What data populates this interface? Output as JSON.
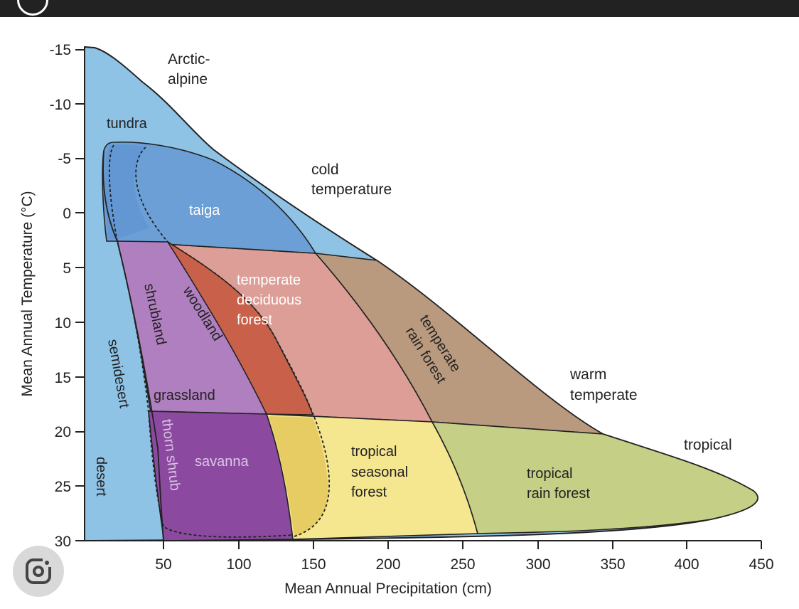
{
  "axes": {
    "y_label": "Mean Annual Temperature (°C)",
    "x_label": "Mean Annual Precipitation (cm)",
    "y_ticks": [
      "-15",
      "-10",
      "-5",
      "0",
      "5",
      "10",
      "15",
      "20",
      "25",
      "30"
    ],
    "x_ticks": [
      "50",
      "100",
      "150",
      "200",
      "250",
      "300",
      "350",
      "400",
      "450"
    ]
  },
  "zones": {
    "arctic_alpine": [
      "Arctic-",
      "alpine"
    ],
    "cold_temperate": [
      "cold",
      "temperature"
    ],
    "warm_temperate": [
      "warm",
      "temperate"
    ],
    "tropical": "tropical"
  },
  "biomes": {
    "tundra": "tundra",
    "taiga": "taiga",
    "temperate_deciduous_forest": [
      "temperate",
      "deciduous",
      "forest"
    ],
    "temperate_rain_forest": [
      "temperate",
      "rain forest"
    ],
    "shrubland": "shrubland",
    "woodland": "woodland",
    "semidesert": "semidesert",
    "grassland": "grassland",
    "desert": "desert",
    "thorn_shrub": "thorn shrub",
    "savanna": "savanna",
    "tropical_seasonal_forest": [
      "tropical",
      "seasonal",
      "forest"
    ],
    "tropical_rain_forest": [
      "tropical",
      "rain forest"
    ]
  },
  "colors": {
    "desert": "#8ec3e6",
    "tundra_taiga": "#6b9fd6",
    "temperate_deciduous": "#dc9e96",
    "woodland": "#c8604a",
    "shrubland": "#b07fbf",
    "savanna": "#8b4aa0",
    "temperate_rain": "#b99a7f",
    "tropical_seasonal": "#f5e690",
    "tropical_seasonal_dark": "#e8d070",
    "tropical_rain": "#c5cf85",
    "outline": "#222222"
  },
  "icons": {
    "lens": "google-lens-icon"
  }
}
